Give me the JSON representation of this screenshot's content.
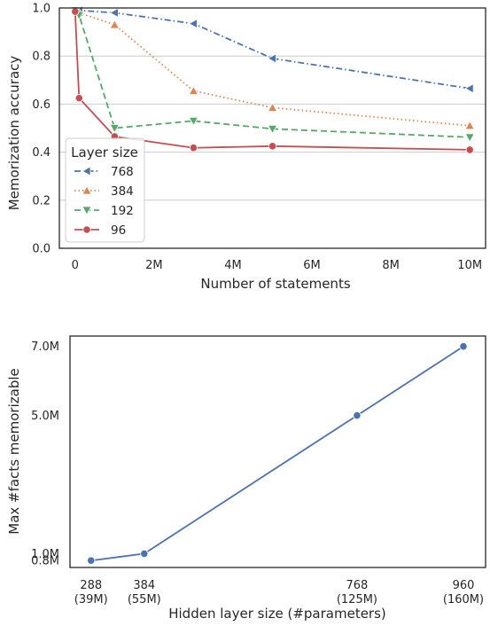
{
  "chart_data": [
    {
      "type": "line",
      "xlabel": "Number of statements",
      "ylabel": "Memorization accuracy",
      "xlim": [
        -400000,
        10400000
      ],
      "ylim": [
        0.0,
        1.0
      ],
      "x_ticks": [
        0,
        2000000,
        4000000,
        6000000,
        8000000,
        10000000
      ],
      "x_tick_labels": [
        "0",
        "2M",
        "4M",
        "6M",
        "8M",
        "10M"
      ],
      "y_ticks": [
        0.0,
        0.2,
        0.4,
        0.6,
        0.8,
        1.0
      ],
      "y_tick_labels": [
        "0.0",
        "0.2",
        "0.4",
        "0.6",
        "0.8",
        "1.0"
      ],
      "grid": "horizontal",
      "legend": {
        "title": "Layer size",
        "placement": "lower-left"
      },
      "series": [
        {
          "name": "768",
          "color": "#4c72b0",
          "dash": "dashdot",
          "marker": "triangle-left",
          "x": [
            0,
            100000,
            1000000,
            3000000,
            5000000,
            10000000
          ],
          "y": [
            0.99,
            0.99,
            0.98,
            0.935,
            0.79,
            0.665
          ]
        },
        {
          "name": "384",
          "color": "#dd8452",
          "dash": "dotted",
          "marker": "triangle-up",
          "x": [
            0,
            100000,
            1000000,
            3000000,
            5000000,
            10000000
          ],
          "y": [
            0.99,
            0.98,
            0.93,
            0.655,
            0.585,
            0.51
          ]
        },
        {
          "name": "192",
          "color": "#55a868",
          "dash": "dashed",
          "marker": "triangle-down",
          "x": [
            0,
            100000,
            1000000,
            3000000,
            5000000,
            10000000
          ],
          "y": [
            0.99,
            0.97,
            0.5,
            0.53,
            0.497,
            0.462
          ]
        },
        {
          "name": "96",
          "color": "#c44e52",
          "dash": "solid",
          "marker": "circle",
          "x": [
            0,
            100000,
            1000000,
            3000000,
            5000000,
            10000000
          ],
          "y": [
            0.985,
            0.625,
            0.465,
            0.418,
            0.425,
            0.41
          ]
        }
      ]
    },
    {
      "type": "line",
      "xlabel": "Hidden layer size (#parameters)",
      "ylabel": "Max #facts memorizable",
      "xlim": [
        250,
        1000
      ],
      "ylim": [
        0.6,
        7.3
      ],
      "x_ticks": [
        288,
        384,
        768,
        960
      ],
      "x_tick_labels": [
        [
          "288",
          "(39M)"
        ],
        [
          "384",
          "(55M)"
        ],
        [
          "768",
          "(125M)"
        ],
        [
          "960",
          "(160M)"
        ]
      ],
      "y_ticks": [
        0.8,
        1.0,
        5.0,
        7.0
      ],
      "y_tick_labels": [
        "0.8M",
        "1.0M",
        "5.0M",
        "7.0M"
      ],
      "grid": "none",
      "series": [
        {
          "color": "#4c72b0",
          "marker": "circle",
          "x": [
            288,
            384,
            768,
            960
          ],
          "y": [
            0.8,
            1.0,
            5.0,
            7.0
          ]
        }
      ]
    }
  ]
}
